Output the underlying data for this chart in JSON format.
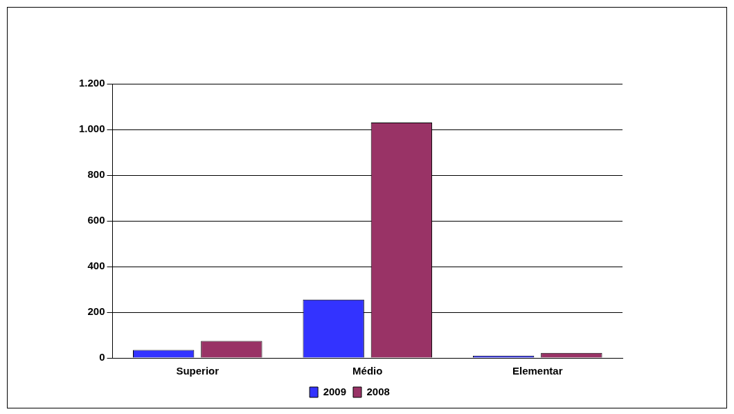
{
  "chart_data": {
    "type": "bar",
    "categories": [
      "Superior",
      "Médio",
      "Elementar"
    ],
    "series": [
      {
        "name": "2009",
        "color": "#3333ff",
        "values": [
          35,
          255,
          10
        ]
      },
      {
        "name": "2008",
        "color": "#993366",
        "values": [
          74,
          1030,
          22
        ]
      }
    ],
    "ylim": [
      0,
      1200
    ],
    "yticks": [
      0,
      200,
      400,
      600,
      800,
      {
        "value": 1000,
        "label": "1.000"
      },
      {
        "value": 1200,
        "label": "1.200"
      }
    ],
    "grid": "y",
    "legend": "bottom"
  }
}
